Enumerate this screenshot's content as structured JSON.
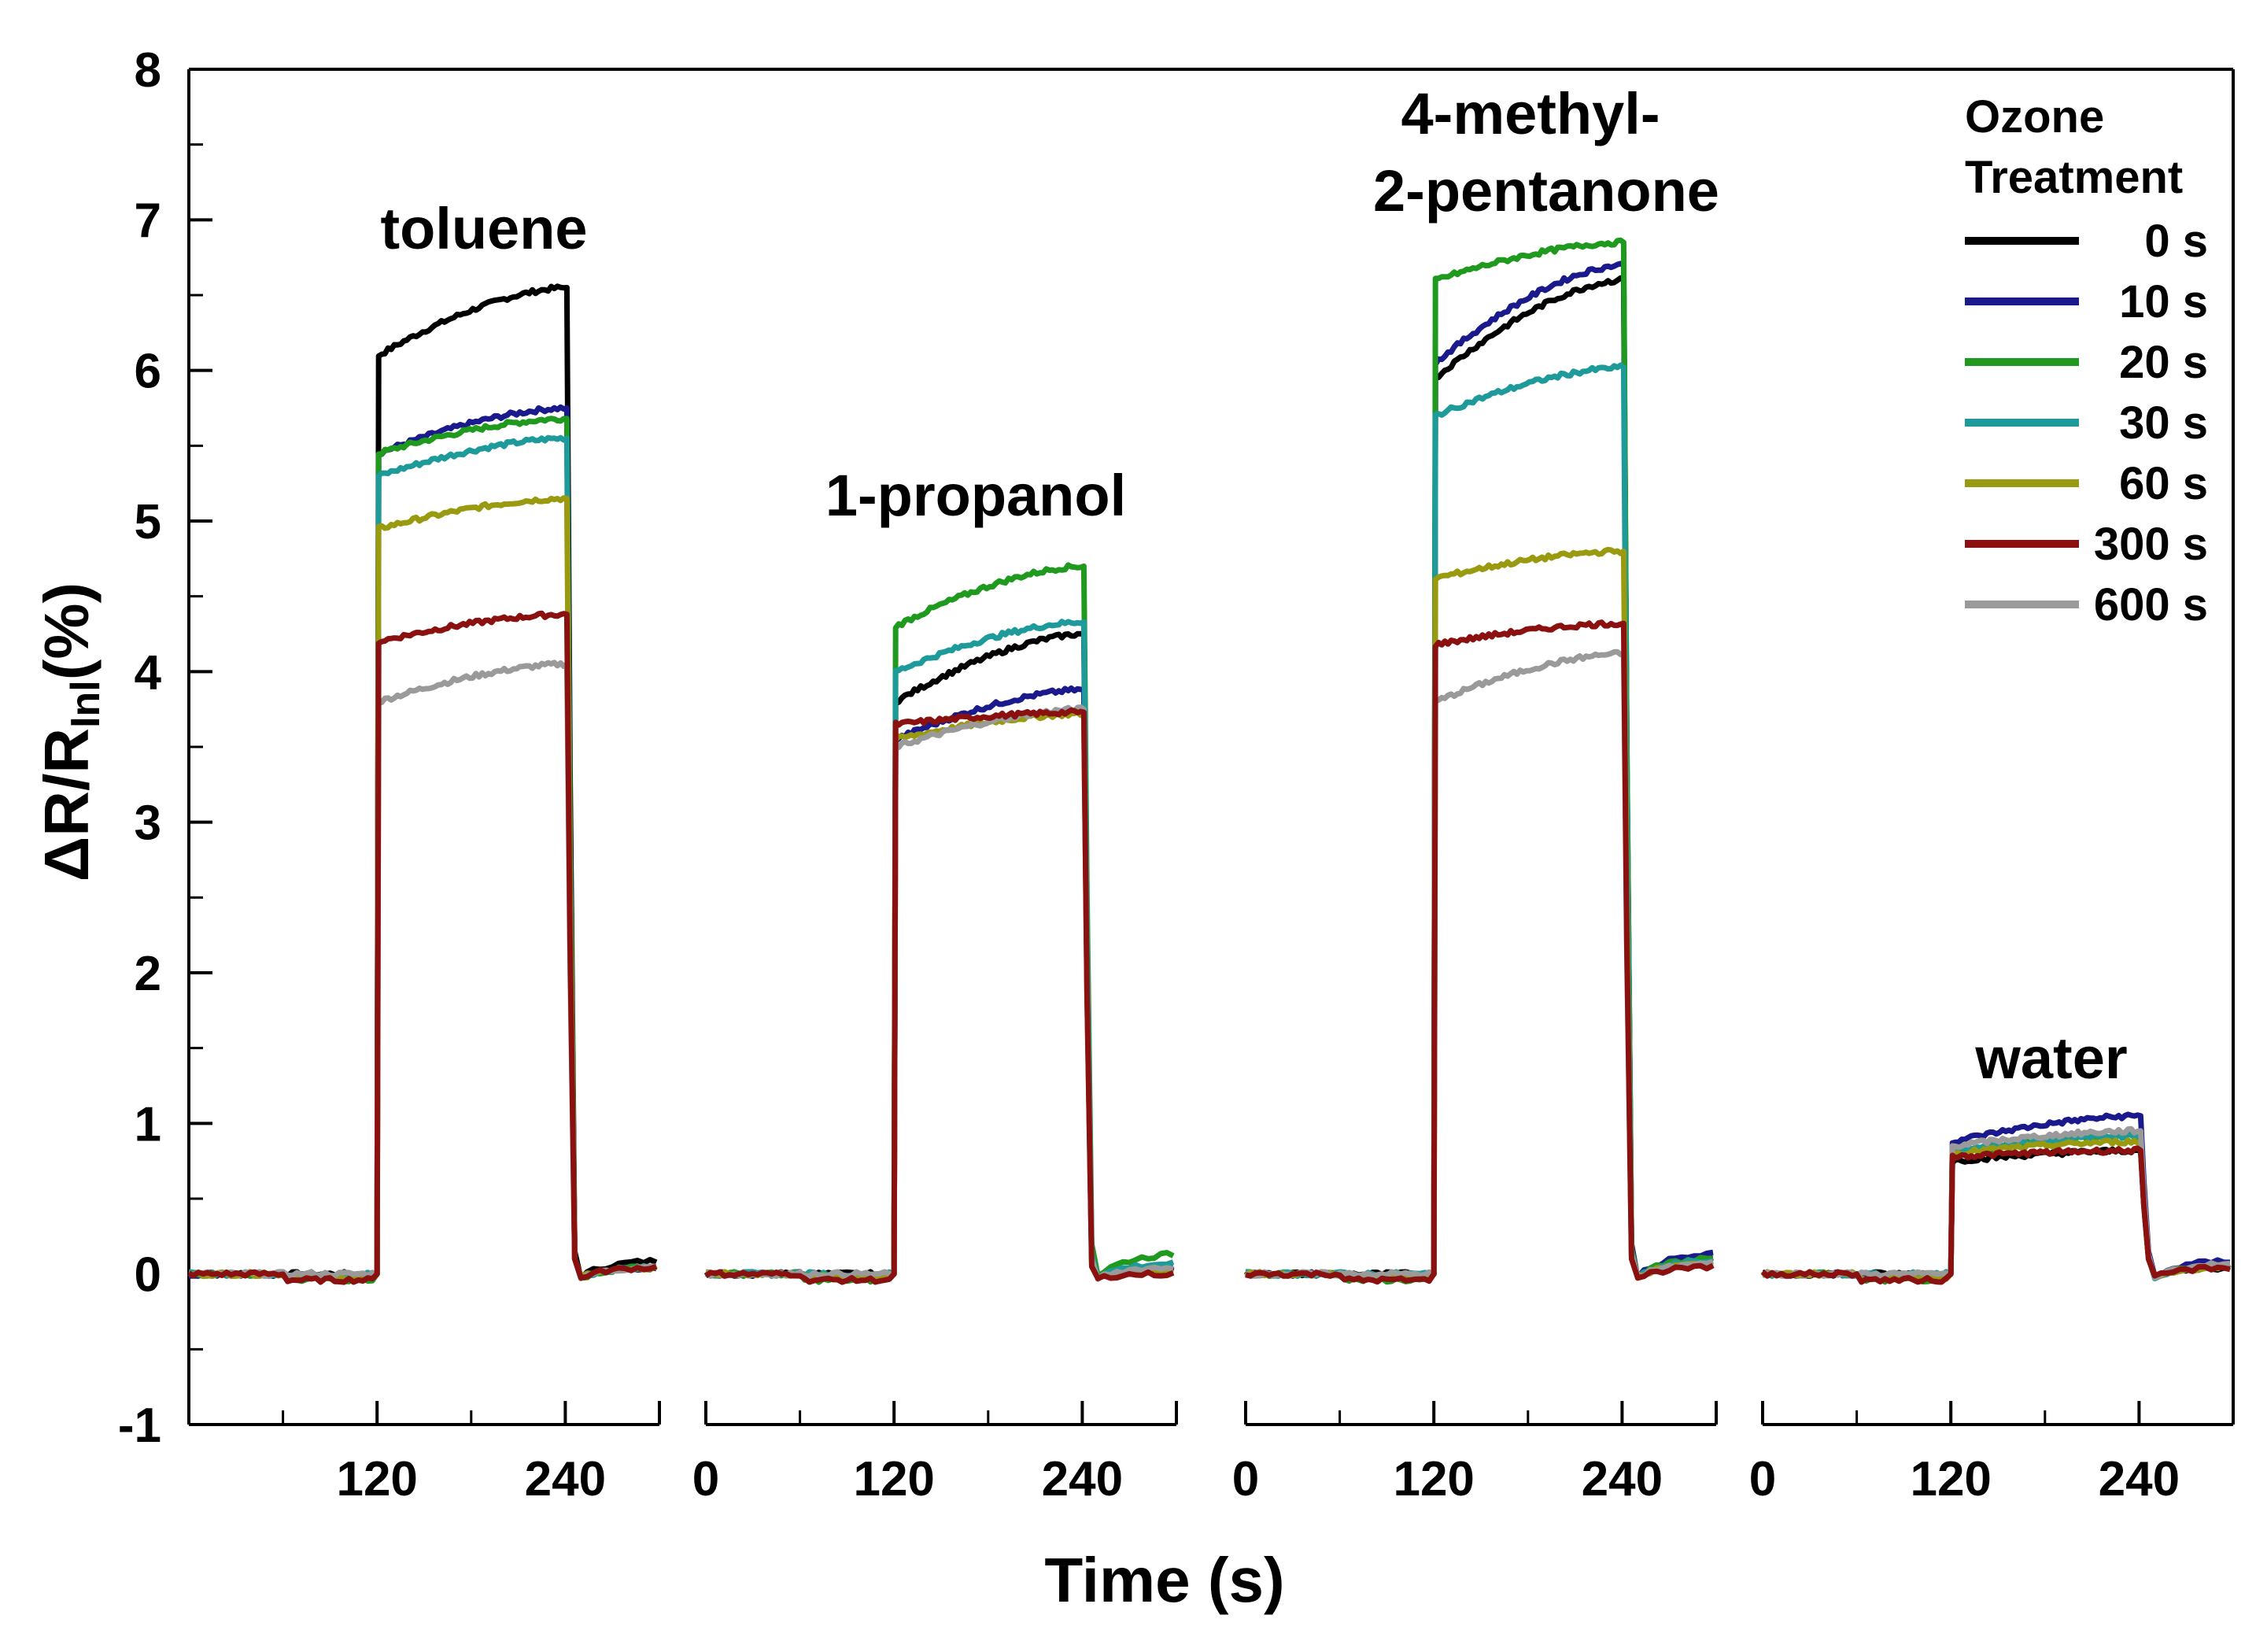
{
  "chart_data": {
    "type": "line",
    "title": "",
    "xlabel": "Time (s)",
    "ylabel_main": "ΔR/R",
    "ylabel_sub": "Inl",
    "ylabel_suffix": "(%)",
    "ylim": [
      -1,
      8
    ],
    "yticks": [
      "-1",
      "0",
      "1",
      "2",
      "3",
      "4",
      "5",
      "6",
      "7",
      "8"
    ],
    "legend": {
      "title_line1": "Ozone",
      "title_line2": "Treatment",
      "position": "top-right"
    },
    "series": [
      {
        "name": "0 s",
        "color": "#000000"
      },
      {
        "name": "10 s",
        "color": "#1a1a8c"
      },
      {
        "name": "20 s",
        "color": "#1f9a1f"
      },
      {
        "name": "30 s",
        "color": "#1f9a9a"
      },
      {
        "name": "60 s",
        "color": "#9a9a10"
      },
      {
        "name": "300 s",
        "color": "#8b1010"
      },
      {
        "name": "600 s",
        "color": "#9a9a9a"
      }
    ],
    "panels": [
      {
        "label_lines": [
          "toluene"
        ],
        "xlim": [
          0,
          300
        ],
        "xticks": [
          "120",
          "240"
        ],
        "xtick_values": [
          120,
          240
        ],
        "plateau_start": [
          6.1,
          5.45,
          5.45,
          5.3,
          4.95,
          4.2,
          3.8
        ],
        "plateau_end": [
          6.55,
          5.75,
          5.68,
          5.55,
          5.15,
          4.38,
          4.05
        ],
        "recovery": [
          0.1,
          0.05,
          0.05,
          0.05,
          0.05,
          0.05,
          0.05
        ]
      },
      {
        "label_lines": [
          "1-propanol"
        ],
        "xlim": [
          0,
          300
        ],
        "xticks": [
          "0",
          "120",
          "240"
        ],
        "xtick_values": [
          0,
          120,
          240
        ],
        "plateau_start": [
          3.8,
          3.55,
          4.3,
          4.0,
          3.55,
          3.65,
          3.5
        ],
        "plateau_end": [
          4.25,
          3.88,
          4.7,
          4.33,
          3.72,
          3.73,
          3.75
        ],
        "recovery": [
          0.05,
          0.05,
          0.15,
          0.08,
          0.02,
          0.0,
          0.05
        ]
      },
      {
        "label_lines": [
          "4-methyl-",
          "2-pentanone"
        ],
        "xlim": [
          0,
          300
        ],
        "xticks": [
          "0",
          "120",
          "240"
        ],
        "xtick_values": [
          0,
          120,
          240
        ],
        "plateau_start": [
          5.95,
          6.05,
          6.6,
          5.7,
          4.62,
          4.18,
          3.8
        ],
        "plateau_end": [
          6.6,
          6.7,
          6.85,
          6.02,
          4.8,
          4.32,
          4.12
        ],
        "recovery": [
          0.12,
          0.15,
          0.12,
          0.1,
          0.08,
          0.05,
          0.08
        ]
      },
      {
        "label_lines": [
          "water"
        ],
        "xlim": [
          0,
          300
        ],
        "xticks": [
          "0",
          "120",
          "240"
        ],
        "xtick_values": [
          0,
          120,
          240
        ],
        "plateau_start": [
          0.75,
          0.88,
          0.8,
          0.82,
          0.8,
          0.78,
          0.85
        ],
        "plateau_end": [
          0.82,
          1.05,
          0.92,
          0.92,
          0.88,
          0.82,
          0.95
        ],
        "recovery": [
          0.05,
          0.1,
          0.06,
          0.06,
          0.05,
          0.05,
          0.08
        ]
      }
    ]
  }
}
